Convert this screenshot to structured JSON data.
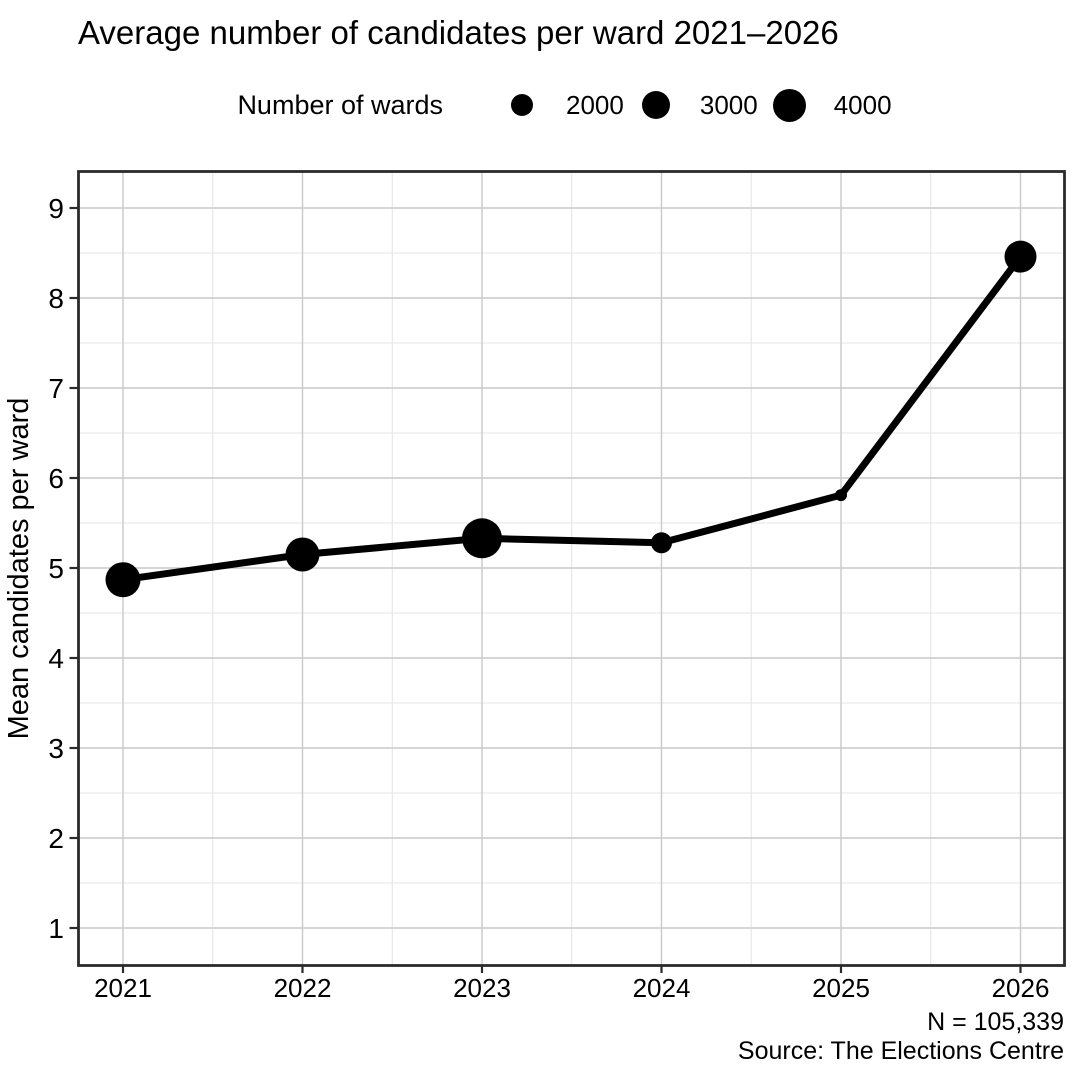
{
  "chart_data": {
    "type": "line",
    "title": "Average number of candidates per ward 2021–2026",
    "ylabel": "Mean candidates per ward",
    "xlabel": "",
    "categories": [
      "2021",
      "2022",
      "2023",
      "2024",
      "2025",
      "2026"
    ],
    "series": [
      {
        "name": "Mean candidates per ward",
        "values": [
          4.87,
          5.15,
          5.33,
          5.28,
          5.81,
          8.46
        ],
        "point_radius_px": [
          17.5,
          17,
          20,
          10.5,
          6,
          16
        ]
      }
    ],
    "y_ticks": [
      "1",
      "2",
      "3",
      "4",
      "5",
      "6",
      "7",
      "8",
      "9"
    ],
    "ylim": [
      0.58,
      9.4
    ],
    "grid": "major and minor gridlines, both axes",
    "legend": {
      "title": "Number of wards",
      "position": "top-center",
      "entries": [
        {
          "label": "2000",
          "radius_px": 11
        },
        {
          "label": "3000",
          "radius_px": 14.3
        },
        {
          "label": "4000",
          "radius_px": 16.5
        }
      ]
    },
    "caption_lines": [
      "N = 105,339",
      "Source: The Elections Centre"
    ],
    "colors": {
      "series": "#000000",
      "background": "#ffffff",
      "panel_border": "#2b2b2b",
      "grid_major": "#c9c9c9",
      "grid_minor": "#e4e4e4",
      "text": "#000000"
    }
  }
}
